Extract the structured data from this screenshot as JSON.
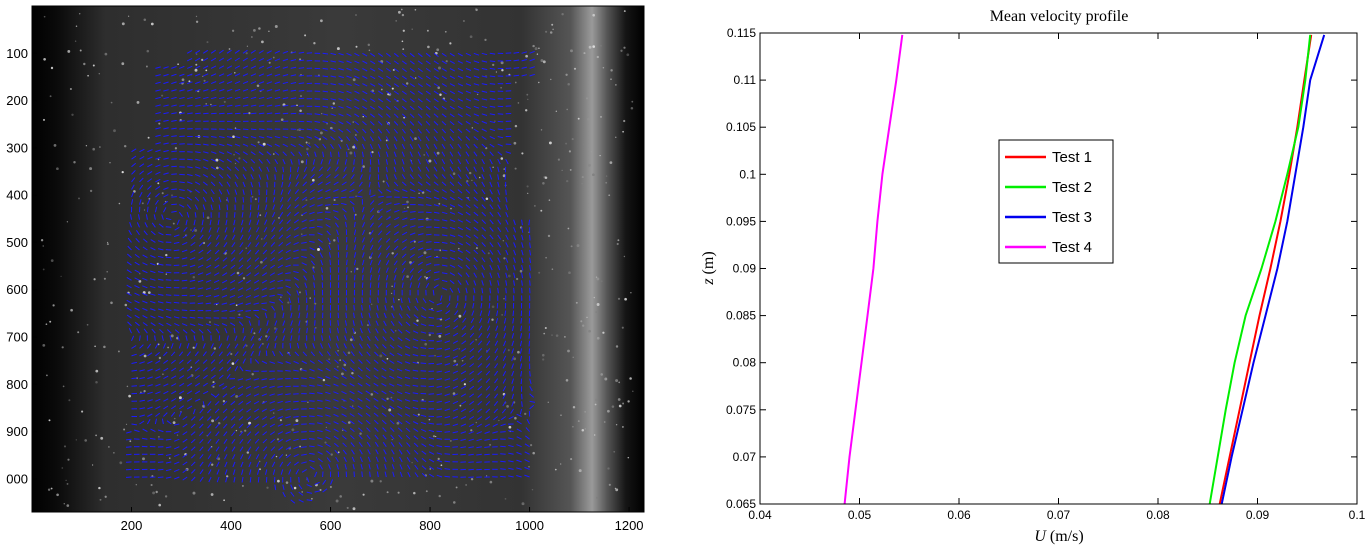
{
  "chart_data": [
    {
      "type": "scatter",
      "panel": "piv-vector-field",
      "x_ticks": [
        "200",
        "400",
        "600",
        "800",
        "1000",
        "1200"
      ],
      "y_ticks": [
        "100",
        "200",
        "300",
        "400",
        "500",
        "600",
        "700",
        "800",
        "900",
        "000"
      ],
      "xlim": [
        0,
        1230
      ],
      "ylim": [
        0,
        1070
      ],
      "vector_color": "#1a1aff",
      "background": "grayscale-particle-image",
      "vortices": [
        {
          "x": 820,
          "y": 610,
          "rotation": "ccw"
        },
        {
          "x": 560,
          "y": 990,
          "rotation": "cw"
        },
        {
          "x": 280,
          "y": 450,
          "rotation": "ccw"
        }
      ]
    },
    {
      "type": "line",
      "title": "Mean velocity profile",
      "xlabel_italic": "U",
      "xlabel_rest": " (m/s)",
      "ylabel_italic": "z",
      "ylabel_rest": " (m)",
      "xlim": [
        0.04,
        0.1
      ],
      "ylim": [
        0.065,
        0.115
      ],
      "x_ticks": [
        "0.04",
        "0.05",
        "0.06",
        "0.07",
        "0.08",
        "0.09",
        "0.1"
      ],
      "y_ticks": [
        "0.065",
        "0.07",
        "0.075",
        "0.08",
        "0.085",
        "0.09",
        "0.095",
        "0.1",
        "0.105",
        "0.11",
        "0.115"
      ],
      "legend_position": "center",
      "z": [
        0.065,
        0.07,
        0.075,
        0.08,
        0.085,
        0.09,
        0.095,
        0.1,
        0.105,
        0.11,
        0.1148
      ],
      "series": [
        {
          "name": "Test 1",
          "color": "#ff0000",
          "values": [
            0.0862,
            0.0872,
            0.0882,
            0.0892,
            0.0902,
            0.0913,
            0.0923,
            0.0932,
            0.094,
            0.0947,
            0.0954
          ]
        },
        {
          "name": "Test 2",
          "color": "#00ee00",
          "values": [
            0.0852,
            0.086,
            0.0868,
            0.0877,
            0.0888,
            0.0904,
            0.0918,
            0.093,
            0.0941,
            0.0948,
            0.0953
          ]
        },
        {
          "name": "Test 3",
          "color": "#0000ee",
          "values": [
            0.0864,
            0.0874,
            0.0885,
            0.0896,
            0.0908,
            0.092,
            0.093,
            0.0938,
            0.0946,
            0.0953,
            0.0967
          ]
        },
        {
          "name": "Test 4",
          "color": "#ff00ff",
          "values": [
            0.0485,
            0.049,
            0.0496,
            0.0502,
            0.0508,
            0.0514,
            0.0518,
            0.0523,
            0.053,
            0.0537,
            0.0543
          ]
        }
      ]
    }
  ]
}
